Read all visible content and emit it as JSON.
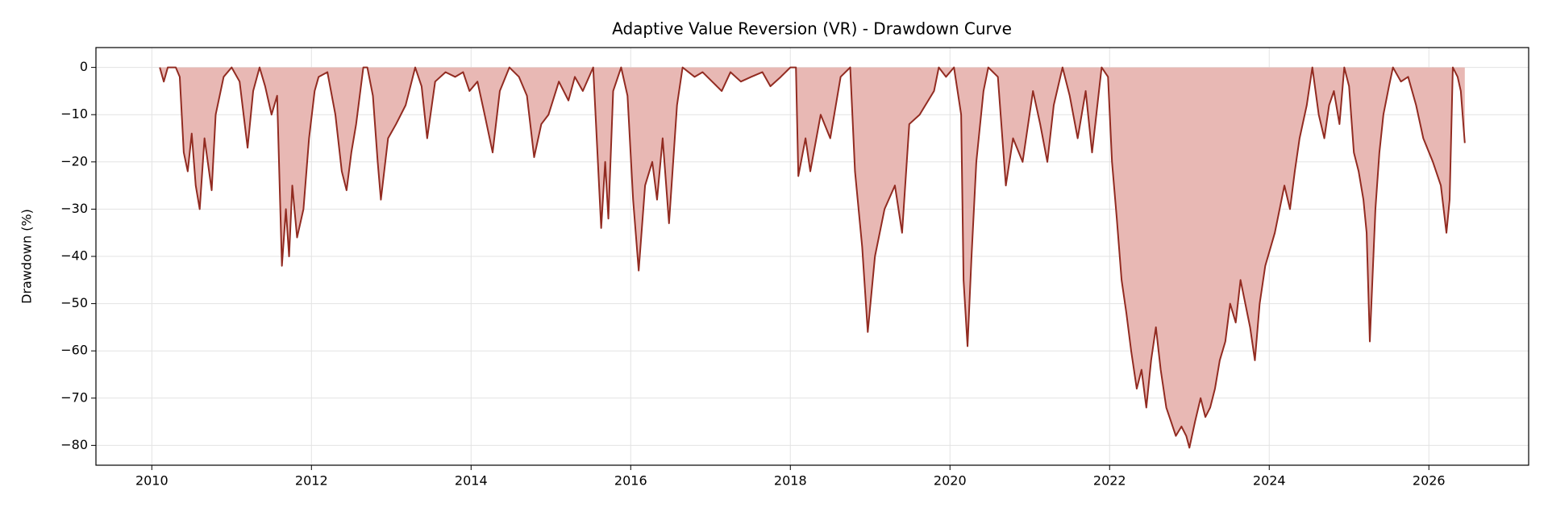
{
  "chart_data": {
    "type": "area_line",
    "title": "Adaptive Value Reversion (VR) - Drawdown Curve",
    "y_label": "Drawdown (%)",
    "x": [
      2010.1,
      2010.15,
      2010.2,
      2010.3,
      2010.35,
      2010.4,
      2010.45,
      2010.5,
      2010.55,
      2010.6,
      2010.66,
      2010.75,
      2010.8,
      2010.9,
      2011.0,
      2011.1,
      2011.2,
      2011.27,
      2011.35,
      2011.42,
      2011.5,
      2011.57,
      2011.63,
      2011.68,
      2011.72,
      2011.76,
      2011.82,
      2011.9,
      2011.97,
      2012.04,
      2012.09,
      2012.2,
      2012.3,
      2012.38,
      2012.44,
      2012.5,
      2012.56,
      2012.65,
      2012.7,
      2012.77,
      2012.83,
      2012.87,
      2012.96,
      2013.06,
      2013.18,
      2013.3,
      2013.38,
      2013.45,
      2013.55,
      2013.68,
      2013.8,
      2013.9,
      2013.98,
      2014.08,
      2014.17,
      2014.27,
      2014.36,
      2014.48,
      2014.6,
      2014.7,
      2014.79,
      2014.88,
      2014.97,
      2015.1,
      2015.22,
      2015.3,
      2015.4,
      2015.53,
      2015.63,
      2015.68,
      2015.72,
      2015.78,
      2015.88,
      2015.96,
      2016.03,
      2016.1,
      2016.18,
      2016.27,
      2016.33,
      2016.4,
      2016.48,
      2016.58,
      2016.65,
      2016.8,
      2016.9,
      2017.02,
      2017.14,
      2017.25,
      2017.38,
      2017.51,
      2017.65,
      2017.75,
      2017.88,
      2018.0,
      2018.07,
      2018.1,
      2018.19,
      2018.25,
      2018.38,
      2018.5,
      2018.63,
      2018.75,
      2018.81,
      2018.9,
      2018.97,
      2019.06,
      2019.18,
      2019.31,
      2019.4,
      2019.49,
      2019.62,
      2019.8,
      2019.86,
      2019.95,
      2020.05,
      2020.14,
      2020.17,
      2020.22,
      2020.27,
      2020.33,
      2020.42,
      2020.48,
      2020.6,
      2020.7,
      2020.79,
      2020.91,
      2021.04,
      2021.13,
      2021.22,
      2021.3,
      2021.41,
      2021.5,
      2021.6,
      2021.7,
      2021.78,
      2021.9,
      2021.98,
      2022.03,
      2022.09,
      2022.15,
      2022.21,
      2022.27,
      2022.34,
      2022.4,
      2022.46,
      2022.52,
      2022.58,
      2022.64,
      2022.71,
      2022.77,
      2022.83,
      2022.9,
      2022.96,
      2023.0,
      2023.07,
      2023.14,
      2023.2,
      2023.26,
      2023.32,
      2023.38,
      2023.45,
      2023.51,
      2023.58,
      2023.64,
      2023.7,
      2023.76,
      2023.82,
      2023.88,
      2023.95,
      2024.07,
      2024.19,
      2024.26,
      2024.32,
      2024.38,
      2024.47,
      2024.54,
      2024.62,
      2024.69,
      2024.75,
      2024.81,
      2024.88,
      2024.94,
      2025.0,
      2025.06,
      2025.12,
      2025.18,
      2025.22,
      2025.26,
      2025.33,
      2025.38,
      2025.43,
      2025.5,
      2025.55,
      2025.65,
      2025.74,
      2025.84,
      2025.93,
      2026.05,
      2026.15,
      2026.22,
      2026.26,
      2026.3,
      2026.36,
      2026.4,
      2026.45
    ],
    "values": [
      0,
      -3,
      0,
      0,
      -2,
      -18,
      -22,
      -14,
      -25,
      -30,
      -15,
      -26,
      -10,
      -2,
      0,
      -3,
      -17,
      -5,
      0,
      -4,
      -10,
      -6,
      -42,
      -30,
      -40,
      -25,
      -36,
      -30,
      -15,
      -5,
      -2,
      -1,
      -10,
      -22,
      -26,
      -18,
      -12,
      0,
      0,
      -6,
      -20,
      -28,
      -15,
      -12,
      -8,
      0,
      -4,
      -15,
      -3,
      -1,
      -2,
      -1,
      -5,
      -3,
      -10,
      -18,
      -5,
      0,
      -2,
      -6,
      -19,
      -12,
      -10,
      -3,
      -7,
      -2,
      -5,
      0,
      -34,
      -20,
      -32,
      -5,
      0,
      -6,
      -28,
      -43,
      -25,
      -20,
      -28,
      -15,
      -33,
      -8,
      0,
      -2,
      -1,
      -3,
      -5,
      -1,
      -3,
      -2,
      -1,
      -4,
      -2,
      0,
      0,
      -23,
      -15,
      -22,
      -10,
      -15,
      -2,
      0,
      -22,
      -38,
      -56,
      -40,
      -30,
      -25,
      -35,
      -12,
      -10,
      -5,
      0,
      -2,
      0,
      -10,
      -45,
      -59,
      -40,
      -20,
      -5,
      0,
      -2,
      -25,
      -15,
      -20,
      -5,
      -12,
      -20,
      -8,
      0,
      -6,
      -15,
      -5,
      -18,
      0,
      -2,
      -20,
      -32,
      -45,
      -52,
      -60,
      -68,
      -64,
      -72,
      -62,
      -55,
      -64,
      -72,
      -75,
      -78,
      -76,
      -78,
      -80.5,
      -75,
      -70,
      -74,
      -72,
      -68,
      -62,
      -58,
      -50,
      -54,
      -45,
      -50,
      -55,
      -62,
      -50,
      -42,
      -35,
      -25,
      -30,
      -22,
      -15,
      -8,
      0,
      -10,
      -15,
      -8,
      -5,
      -12,
      0,
      -4,
      -18,
      -22,
      -28,
      -35,
      -58,
      -30,
      -18,
      -10,
      -4,
      0,
      -3,
      -2,
      -8,
      -15,
      -20,
      -25,
      -35,
      -28,
      0,
      -2,
      -5,
      -16
    ],
    "xlim": [
      2009.3,
      2027.25
    ],
    "ylim": [
      -84.2,
      4.2
    ],
    "xticks": [
      2010,
      2012,
      2014,
      2016,
      2018,
      2020,
      2022,
      2024,
      2026
    ],
    "yticks": [
      0,
      {
        "value": -10,
        "label": "−10"
      },
      {
        "value": -20,
        "label": "−20"
      },
      {
        "value": -30,
        "label": "−30"
      },
      {
        "value": -40,
        "label": "−40"
      },
      {
        "value": -50,
        "label": "−50"
      },
      {
        "value": -60,
        "label": "−60"
      },
      {
        "value": -70,
        "label": "−70"
      },
      {
        "value": -80,
        "label": "−80"
      }
    ],
    "color": "#922b21",
    "fill_color": "#e8b8b4",
    "grid": true
  }
}
